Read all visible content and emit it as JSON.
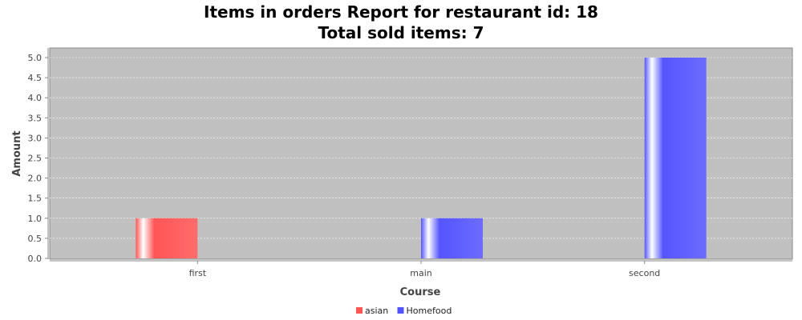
{
  "chart_data": {
    "type": "bar",
    "title": "Items in orders Report for restaurant id: 18",
    "subtitle": "Total sold items: 7",
    "xlabel": "Course",
    "ylabel": "Amount",
    "categories": [
      "first",
      "main",
      "second"
    ],
    "ylim": [
      0.0,
      5.0
    ],
    "yticks": [
      "0.0",
      "0.5",
      "1.0",
      "1.5",
      "2.0",
      "2.5",
      "3.0",
      "3.5",
      "4.0",
      "4.5",
      "5.0"
    ],
    "grid": true,
    "legend_position": "bottom-center",
    "series": [
      {
        "name": "asian",
        "color": "#ff5555",
        "values": [
          1,
          0,
          0
        ]
      },
      {
        "name": "Homefood",
        "color": "#5555ff",
        "values": [
          0,
          1,
          5
        ]
      }
    ],
    "plot_background": "#c0c0c0"
  }
}
